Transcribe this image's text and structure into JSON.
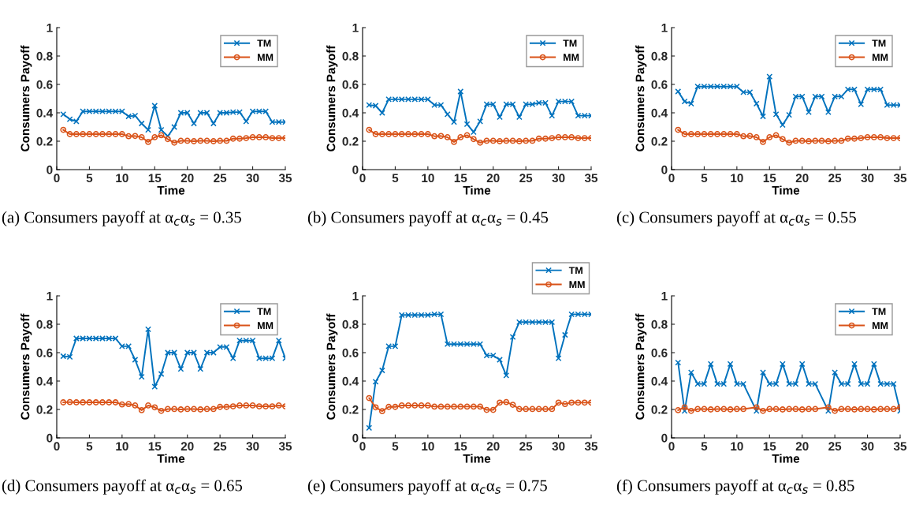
{
  "chart_data": [
    {
      "type": "line",
      "xlabel": "Time",
      "ylabel": "Consumers Payoff",
      "annotations": [
        "(a) Consumers payoff at α$_{c}$α$_{s}$ = 0.35"
      ],
      "legend": "top right",
      "grid": false,
      "x": [
        1,
        2,
        3,
        4,
        5,
        6,
        7,
        8,
        9,
        10,
        11,
        12,
        13,
        14,
        15,
        16,
        17,
        18,
        19,
        20,
        21,
        22,
        23,
        24,
        25,
        26,
        27,
        28,
        29,
        30,
        31,
        32,
        33,
        34,
        35
      ],
      "xlim": [
        0,
        35
      ],
      "xticks": [
        0,
        5,
        10,
        15,
        20,
        25,
        30,
        35
      ],
      "ylim": [
        0,
        1
      ],
      "yticks": [
        0,
        0.2,
        0.4,
        0.6,
        0.8,
        1
      ],
      "series": [
        {
          "name": "TM",
          "color": "#0072bd",
          "marker": "cross",
          "values": [
            0.39,
            0.355,
            0.34,
            0.41,
            0.41,
            0.41,
            0.41,
            0.41,
            0.41,
            0.41,
            0.375,
            0.38,
            0.325,
            0.28,
            0.45,
            0.28,
            0.235,
            0.3,
            0.4,
            0.4,
            0.325,
            0.4,
            0.4,
            0.325,
            0.4,
            0.4,
            0.405,
            0.405,
            0.34,
            0.41,
            0.41,
            0.41,
            0.335,
            0.335,
            0.335
          ]
        },
        {
          "name": "MM",
          "color": "#d95319",
          "marker": "circle",
          "values": [
            0.28,
            0.25,
            0.25,
            0.25,
            0.25,
            0.25,
            0.25,
            0.25,
            0.25,
            0.25,
            0.235,
            0.237,
            0.228,
            0.195,
            0.228,
            0.242,
            0.215,
            0.19,
            0.203,
            0.203,
            0.2,
            0.203,
            0.203,
            0.2,
            0.203,
            0.203,
            0.218,
            0.218,
            0.222,
            0.228,
            0.228,
            0.228,
            0.222,
            0.222,
            0.222
          ]
        }
      ]
    },
    {
      "type": "line",
      "xlabel": "Time",
      "ylabel": "Consumers Payoff",
      "annotations": [
        "(b) Consumers payoff at α$_{c}$α$_{s}$ = 0.45"
      ],
      "legend": "top right",
      "grid": false,
      "x": [
        1,
        2,
        3,
        4,
        5,
        6,
        7,
        8,
        9,
        10,
        11,
        12,
        13,
        14,
        15,
        16,
        17,
        18,
        19,
        20,
        21,
        22,
        23,
        24,
        25,
        26,
        27,
        28,
        29,
        30,
        31,
        32,
        33,
        34,
        35
      ],
      "xlim": [
        0,
        35
      ],
      "xticks": [
        0,
        5,
        10,
        15,
        20,
        25,
        30,
        35
      ],
      "ylim": [
        0,
        1
      ],
      "yticks": [
        0,
        0.2,
        0.4,
        0.6,
        0.8,
        1
      ],
      "series": [
        {
          "name": "TM",
          "color": "#0072bd",
          "marker": "cross",
          "values": [
            0.455,
            0.45,
            0.4,
            0.495,
            0.495,
            0.495,
            0.495,
            0.495,
            0.495,
            0.495,
            0.455,
            0.455,
            0.39,
            0.335,
            0.55,
            0.32,
            0.265,
            0.34,
            0.46,
            0.46,
            0.37,
            0.46,
            0.46,
            0.37,
            0.46,
            0.46,
            0.47,
            0.47,
            0.38,
            0.48,
            0.48,
            0.48,
            0.38,
            0.38,
            0.38
          ]
        },
        {
          "name": "MM",
          "color": "#d95319",
          "marker": "circle",
          "values": [
            0.28,
            0.25,
            0.25,
            0.25,
            0.25,
            0.25,
            0.25,
            0.25,
            0.25,
            0.25,
            0.235,
            0.237,
            0.228,
            0.195,
            0.228,
            0.242,
            0.215,
            0.19,
            0.203,
            0.203,
            0.2,
            0.203,
            0.203,
            0.2,
            0.203,
            0.203,
            0.218,
            0.218,
            0.222,
            0.228,
            0.228,
            0.228,
            0.222,
            0.222,
            0.222
          ]
        }
      ]
    },
    {
      "type": "line",
      "xlabel": "Time",
      "ylabel": "Consumers Payoff",
      "annotations": [
        "(c) Consumers payoff at α$_{c}$α$_{s}$ = 0.55"
      ],
      "legend": "top right",
      "grid": false,
      "x": [
        1,
        2,
        3,
        4,
        5,
        6,
        7,
        8,
        9,
        10,
        11,
        12,
        13,
        14,
        15,
        16,
        17,
        18,
        19,
        20,
        21,
        22,
        23,
        24,
        25,
        26,
        27,
        28,
        29,
        30,
        31,
        32,
        33,
        34,
        35
      ],
      "xlim": [
        0,
        35
      ],
      "xticks": [
        0,
        5,
        10,
        15,
        20,
        25,
        30,
        35
      ],
      "ylim": [
        0,
        1
      ],
      "yticks": [
        0,
        0.2,
        0.4,
        0.6,
        0.8,
        1
      ],
      "series": [
        {
          "name": "TM",
          "color": "#0072bd",
          "marker": "cross",
          "values": [
            0.55,
            0.48,
            0.465,
            0.585,
            0.585,
            0.585,
            0.585,
            0.585,
            0.585,
            0.585,
            0.545,
            0.545,
            0.465,
            0.375,
            0.655,
            0.39,
            0.315,
            0.385,
            0.515,
            0.515,
            0.405,
            0.515,
            0.515,
            0.405,
            0.515,
            0.515,
            0.565,
            0.565,
            0.46,
            0.565,
            0.565,
            0.565,
            0.455,
            0.455,
            0.455
          ]
        },
        {
          "name": "MM",
          "color": "#d95319",
          "marker": "circle",
          "values": [
            0.28,
            0.25,
            0.25,
            0.25,
            0.25,
            0.25,
            0.25,
            0.25,
            0.25,
            0.25,
            0.235,
            0.237,
            0.228,
            0.195,
            0.228,
            0.242,
            0.215,
            0.19,
            0.203,
            0.203,
            0.2,
            0.203,
            0.203,
            0.2,
            0.203,
            0.203,
            0.218,
            0.218,
            0.222,
            0.228,
            0.228,
            0.228,
            0.222,
            0.222,
            0.222
          ]
        }
      ]
    },
    {
      "type": "line",
      "xlabel": "Time",
      "ylabel": "Consumers Payoff",
      "annotations": [
        "(d) Consumers payoff at α$_{c}$α$_{s}$ = 0.65"
      ],
      "legend": "top right",
      "grid": false,
      "x": [
        1,
        2,
        3,
        4,
        5,
        6,
        7,
        8,
        9,
        10,
        11,
        12,
        13,
        14,
        15,
        16,
        17,
        18,
        19,
        20,
        21,
        22,
        23,
        24,
        25,
        26,
        27,
        28,
        29,
        30,
        31,
        32,
        33,
        34,
        35
      ],
      "xlim": [
        0,
        35
      ],
      "xticks": [
        0,
        5,
        10,
        15,
        20,
        25,
        30,
        35
      ],
      "ylim": [
        0,
        1
      ],
      "yticks": [
        0,
        0.2,
        0.4,
        0.6,
        0.8,
        1
      ],
      "series": [
        {
          "name": "TM",
          "color": "#0072bd",
          "marker": "cross",
          "values": [
            0.575,
            0.57,
            0.7,
            0.7,
            0.7,
            0.7,
            0.7,
            0.7,
            0.7,
            0.645,
            0.645,
            0.55,
            0.43,
            0.765,
            0.36,
            0.45,
            0.6,
            0.6,
            0.485,
            0.6,
            0.6,
            0.485,
            0.6,
            0.6,
            0.64,
            0.64,
            0.56,
            0.685,
            0.685,
            0.685,
            0.56,
            0.56,
            0.56,
            0.685,
            0.56
          ]
        },
        {
          "name": "MM",
          "color": "#d95319",
          "marker": "circle",
          "values": [
            0.25,
            0.252,
            0.25,
            0.25,
            0.25,
            0.25,
            0.25,
            0.25,
            0.25,
            0.235,
            0.238,
            0.228,
            0.195,
            0.228,
            0.215,
            0.19,
            0.203,
            0.203,
            0.2,
            0.203,
            0.203,
            0.2,
            0.203,
            0.203,
            0.218,
            0.218,
            0.222,
            0.228,
            0.228,
            0.228,
            0.222,
            0.222,
            0.222,
            0.228,
            0.222
          ]
        }
      ]
    },
    {
      "type": "line",
      "xlabel": "Time",
      "ylabel": "Consumers Payoff",
      "annotations": [
        "(e) Consumers payoff at α$_{c}$α$_{s}$ = 0.75"
      ],
      "legend": "top right",
      "grid": false,
      "x": [
        1,
        2,
        3,
        4,
        5,
        6,
        7,
        8,
        9,
        10,
        11,
        12,
        13,
        14,
        15,
        16,
        17,
        18,
        19,
        20,
        21,
        22,
        23,
        24,
        25,
        26,
        27,
        28,
        29,
        30,
        31,
        32,
        33,
        34,
        35
      ],
      "xlim": [
        0,
        35
      ],
      "xticks": [
        0,
        5,
        10,
        15,
        20,
        25,
        30,
        35
      ],
      "ylim": [
        0,
        1
      ],
      "yticks": [
        0,
        0.2,
        0.4,
        0.6,
        0.8,
        1
      ],
      "series": [
        {
          "name": "TM",
          "color": "#0072bd",
          "marker": "cross",
          "values": [
            0.07,
            0.395,
            0.475,
            0.645,
            0.645,
            0.865,
            0.865,
            0.865,
            0.865,
            0.865,
            0.87,
            0.87,
            0.66,
            0.66,
            0.66,
            0.66,
            0.66,
            0.66,
            0.58,
            0.58,
            0.55,
            0.44,
            0.71,
            0.815,
            0.815,
            0.815,
            0.815,
            0.815,
            0.815,
            0.56,
            0.725,
            0.87,
            0.87,
            0.87,
            0.87
          ]
        },
        {
          "name": "MM",
          "color": "#d95319",
          "marker": "circle",
          "values": [
            0.28,
            0.215,
            0.188,
            0.218,
            0.218,
            0.228,
            0.228,
            0.228,
            0.228,
            0.228,
            0.22,
            0.22,
            0.22,
            0.22,
            0.22,
            0.22,
            0.22,
            0.22,
            0.197,
            0.197,
            0.248,
            0.252,
            0.233,
            0.203,
            0.203,
            0.203,
            0.203,
            0.203,
            0.203,
            0.248,
            0.238,
            0.248,
            0.248,
            0.248,
            0.248
          ]
        }
      ]
    },
    {
      "type": "line",
      "xlabel": "Time",
      "ylabel": "Consumers Payoff",
      "annotations": [
        "(f) Consumers payoff at α$_{c}$α$_{s}$ = 0.85"
      ],
      "legend": "top right",
      "grid": false,
      "x": [
        1,
        2,
        3,
        4,
        5,
        6,
        7,
        8,
        9,
        10,
        11,
        13,
        14,
        15,
        16,
        17,
        18,
        19,
        20,
        21,
        22,
        24,
        25,
        26,
        27,
        28,
        29,
        30,
        31,
        32,
        33,
        34,
        35
      ],
      "xlim": [
        0,
        35
      ],
      "xticks": [
        0,
        5,
        10,
        15,
        20,
        25,
        30,
        35
      ],
      "ylim": [
        0,
        1
      ],
      "yticks": [
        0,
        0.2,
        0.4,
        0.6,
        0.8,
        1
      ],
      "series": [
        {
          "name": "TM",
          "color": "#0072bd",
          "marker": "cross",
          "values": [
            0.53,
            0.19,
            0.46,
            0.38,
            0.38,
            0.52,
            0.38,
            0.38,
            0.52,
            0.38,
            0.38,
            0.19,
            0.46,
            0.38,
            0.38,
            0.52,
            0.38,
            0.38,
            0.52,
            0.38,
            0.38,
            0.19,
            0.46,
            0.38,
            0.38,
            0.52,
            0.38,
            0.38,
            0.52,
            0.38,
            0.38,
            0.38,
            0.19
          ]
        },
        {
          "name": "MM",
          "color": "#d95319",
          "marker": "circle",
          "values": [
            0.195,
            0.215,
            0.19,
            0.203,
            0.203,
            0.2,
            0.203,
            0.203,
            0.2,
            0.203,
            0.203,
            0.215,
            0.19,
            0.203,
            0.203,
            0.2,
            0.203,
            0.203,
            0.2,
            0.203,
            0.203,
            0.215,
            0.19,
            0.203,
            0.203,
            0.2,
            0.203,
            0.203,
            0.2,
            0.203,
            0.203,
            0.203,
            0.215
          ]
        }
      ]
    }
  ]
}
